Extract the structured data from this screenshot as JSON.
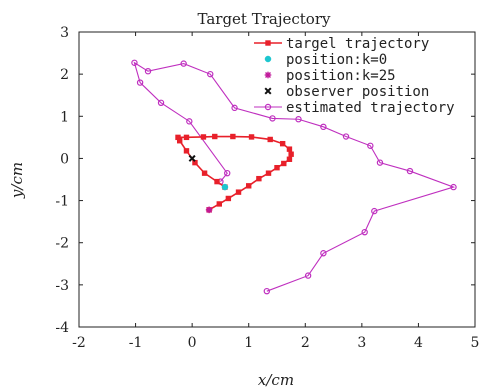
{
  "chart_data": {
    "type": "line",
    "title": "Target Trajectory",
    "xlabel": "x/cm",
    "ylabel": "y/cm",
    "xlim": [
      -2,
      5
    ],
    "ylim": [
      -4,
      3
    ],
    "xticks": [
      -2,
      -1,
      0,
      1,
      2,
      3,
      4,
      5
    ],
    "yticks": [
      -4,
      -3,
      -2,
      -1,
      0,
      1,
      2,
      3
    ],
    "grid": false,
    "legend_position": "top-right",
    "series": [
      {
        "name": "targel trajectory",
        "kind": "line-markers",
        "color": "#e8202a",
        "x": [
          0.58,
          0.44,
          0.22,
          0.05,
          -0.1,
          -0.22,
          -0.25,
          -0.1,
          0.2,
          0.4,
          0.72,
          1.05,
          1.38,
          1.6,
          1.72,
          1.75,
          1.72,
          1.62,
          1.5,
          1.35,
          1.18,
          1.0,
          0.82,
          0.64,
          0.48,
          0.3
        ],
        "y": [
          -0.68,
          -0.55,
          -0.35,
          -0.1,
          0.18,
          0.42,
          0.5,
          0.5,
          0.51,
          0.52,
          0.52,
          0.51,
          0.45,
          0.35,
          0.22,
          0.1,
          -0.02,
          -0.12,
          -0.22,
          -0.35,
          -0.48,
          -0.65,
          -0.8,
          -0.95,
          -1.08,
          -1.22
        ]
      },
      {
        "name": "position:k=0",
        "kind": "marker",
        "marker": "circle",
        "color": "#1cc6cf",
        "x": [
          0.58
        ],
        "y": [
          -0.68
        ]
      },
      {
        "name": "position:k=25",
        "kind": "marker",
        "marker": "star",
        "color": "#c0189a",
        "x": [
          0.3
        ],
        "y": [
          -1.22
        ]
      },
      {
        "name": "observer position",
        "kind": "marker",
        "marker": "x",
        "color": "#111111",
        "x": [
          0
        ],
        "y": [
          0
        ]
      },
      {
        "name": "estimated trajectory",
        "kind": "line-markers",
        "color": "#bf2fbf",
        "x": [
          0.5,
          0.62,
          -0.05,
          -0.55,
          -0.92,
          -1.02,
          -0.78,
          -0.15,
          0.32,
          0.75,
          1.42,
          1.88,
          2.32,
          2.72,
          3.15,
          3.32,
          3.85,
          4.62,
          3.22,
          3.05,
          2.32,
          2.05,
          1.32
        ],
        "y": [
          -0.55,
          -0.35,
          0.88,
          1.32,
          1.8,
          2.27,
          2.07,
          2.25,
          2.0,
          1.2,
          0.95,
          0.93,
          0.75,
          0.52,
          0.3,
          -0.1,
          -0.3,
          -0.68,
          -1.25,
          -1.75,
          -2.25,
          -2.78,
          -3.15
        ]
      }
    ]
  }
}
